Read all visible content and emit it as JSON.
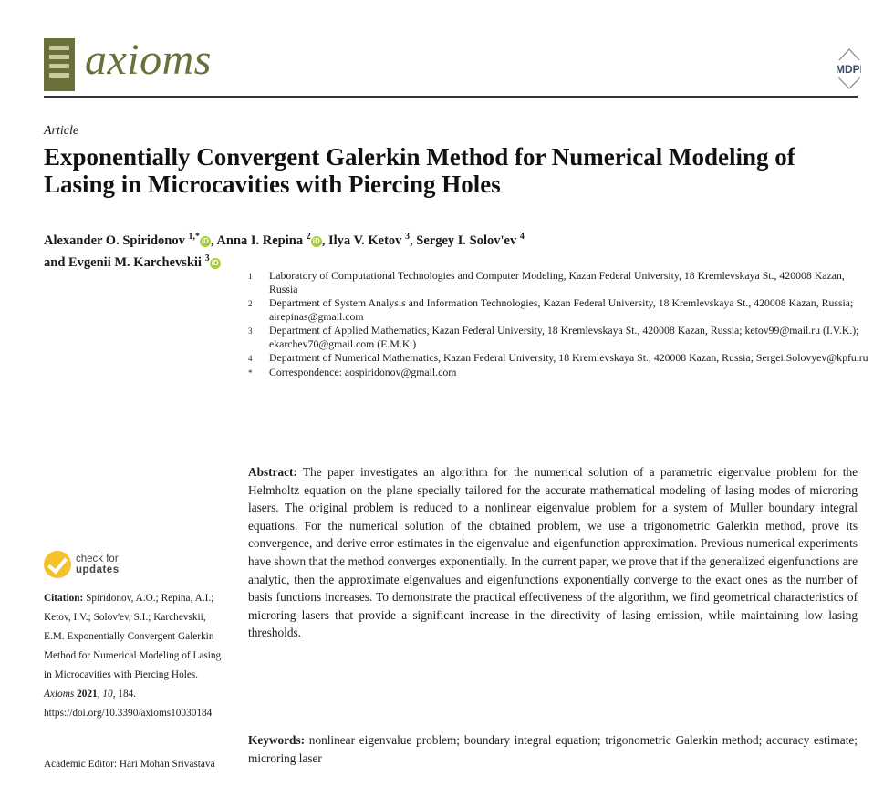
{
  "header": {
    "journal": "axioms",
    "publisher": "MDPI"
  },
  "article_type": "Article",
  "title": "Exponentially Convergent Galerkin Method for Numerical Modeling of Lasing in Microcavities with Piercing Holes",
  "authors": [
    {
      "name": "Alexander O. Spiridonov",
      "sup": "1,*",
      "orcid": true
    },
    {
      "name": "Anna I. Repina",
      "sup": "2",
      "orcid": true
    },
    {
      "name": "Ilya V. Ketov",
      "sup": "3",
      "orcid": false
    },
    {
      "name": "Sergey I. Solov'ev",
      "sup": "4",
      "orcid": false
    },
    {
      "name": "Evgenii M. Karchevskii",
      "sup": "3",
      "orcid": true
    }
  ],
  "authors_joiner": "and",
  "affiliations": [
    {
      "n": "1",
      "text": "Laboratory of Computational Technologies and Computer Modeling, Kazan Federal University, 18 Kremlevskaya St., 420008 Kazan, Russia"
    },
    {
      "n": "2",
      "text": "Department of System Analysis and Information Technologies, Kazan Federal University, 18 Kremlevskaya St., 420008 Kazan, Russia; airepinas@gmail.com"
    },
    {
      "n": "3",
      "text": "Department of Applied Mathematics, Kazan Federal University, 18 Kremlevskaya St., 420008 Kazan, Russia; ketov99@mail.ru (I.V.K.); ekarchev70@gmail.com (E.M.K.)"
    },
    {
      "n": "4",
      "text": "Department of Numerical Mathematics, Kazan Federal University, 18 Kremlevskaya St., 420008 Kazan, Russia; Sergei.Solovyev@kpfu.ru"
    },
    {
      "n": "*",
      "text": "Correspondence: aospiridonov@gmail.com"
    }
  ],
  "abstract": {
    "label": "Abstract:",
    "text": "The paper investigates an algorithm for the numerical solution of a parametric eigenvalue problem for the Helmholtz equation on the plane specially tailored for the accurate mathematical modeling of lasing modes of microring lasers. The original problem is reduced to a nonlinear eigenvalue problem for a system of Muller boundary integral equations. For the numerical solution of the obtained problem, we use a trigonometric Galerkin method, prove its convergence, and derive error estimates in the eigenvalue and eigenfunction approximation. Previous numerical experiments have shown that the method converges exponentially. In the current paper, we prove that if the generalized eigenfunctions are analytic, then the approximate eigenvalues and eigenfunctions exponentially converge to the exact ones as the number of basis functions increases. To demonstrate the practical effectiveness of the algorithm, we find geometrical characteristics of microring lasers that provide a significant increase in the directivity of lasing emission, while maintaining low lasing thresholds."
  },
  "keywords": {
    "label": "Keywords:",
    "text": "nonlinear eigenvalue problem; boundary integral equation; trigonometric Galerkin method; accuracy estimate; microring laser"
  },
  "sidebar": {
    "check_line1": "check for",
    "check_line2": "updates",
    "citation_label": "Citation:",
    "citation_text": "Spiridonov, A.O.; Repina, A.I.; Ketov, I.V.; Solov'ev, S.I.; Karchevskii, E.M. Exponentially Convergent Galerkin Method for Numerical Modeling of Lasing in Microcavities with Piercing Holes.",
    "citation_journal": "Axioms",
    "citation_year": "2021",
    "citation_volume": "10",
    "citation_pages": ", 184. https://doi.org/10.3390/axioms10030184",
    "editor": "Academic Editor: Hari Mohan Srivastava"
  },
  "colors": {
    "journal_green": "#6b6f3a",
    "orcid_green": "#a6ce39",
    "check_yellow": "#f3c12b"
  }
}
